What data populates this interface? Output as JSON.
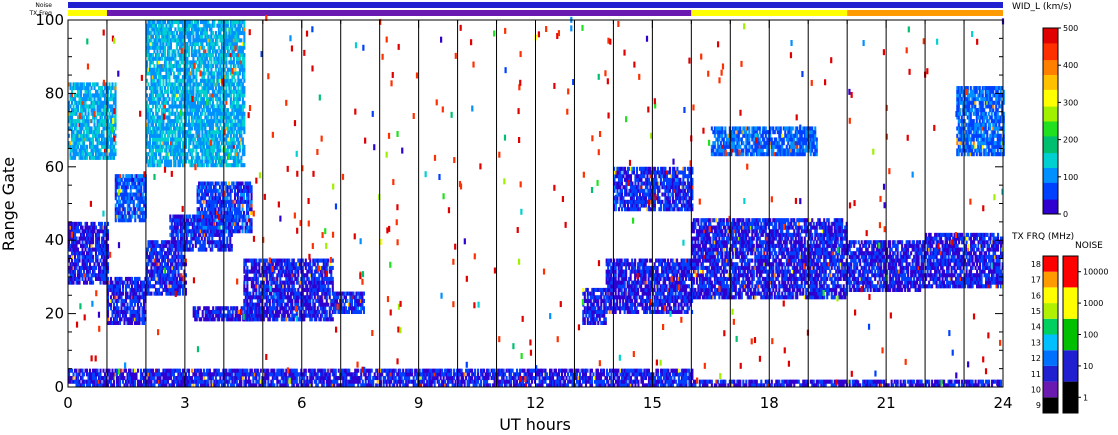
{
  "chart_data": {
    "type": "heatmap",
    "xlabel": "UT hours",
    "ylabel": "Range Gate",
    "xlim": [
      0,
      24
    ],
    "ylim": [
      0,
      100
    ],
    "x_ticks": [
      "0",
      "3",
      "6",
      "9",
      "12",
      "15",
      "18",
      "21",
      "24"
    ],
    "y_ticks": [
      "0",
      "20",
      "40",
      "60",
      "80",
      "100"
    ],
    "scan_boundaries_ut": [
      1.0,
      2.0,
      3.0,
      4.0,
      5.0,
      6.0,
      7.0,
      8.0,
      9.0,
      10.0,
      11.0,
      12.0,
      13.0,
      14.0,
      15.0,
      16.0,
      17.0,
      18.0,
      19.0,
      20.0,
      21.0,
      22.0,
      23.0
    ],
    "echo_regions": [
      {
        "x0": 0.0,
        "x1": 1.0,
        "y0": 28,
        "y1": 45,
        "wid": 40
      },
      {
        "x0": 1.0,
        "x1": 2.0,
        "y0": 17,
        "y1": 30,
        "wid": 40
      },
      {
        "x0": 2.0,
        "x1": 3.0,
        "y0": 25,
        "y1": 40,
        "wid": 45
      },
      {
        "x0": 2.6,
        "x1": 4.2,
        "y0": 37,
        "y1": 47,
        "wid": 50
      },
      {
        "x0": 3.3,
        "x1": 4.7,
        "y0": 42,
        "y1": 56,
        "wid": 60
      },
      {
        "x0": 1.2,
        "x1": 2.0,
        "y0": 45,
        "y1": 58,
        "wid": 70
      },
      {
        "x0": 3.2,
        "x1": 4.7,
        "y0": 18,
        "y1": 22,
        "wid": 40
      },
      {
        "x0": 4.5,
        "x1": 6.8,
        "y0": 18,
        "y1": 35,
        "wid": 40
      },
      {
        "x0": 6.8,
        "x1": 7.6,
        "y0": 20,
        "y1": 26,
        "wid": 50
      },
      {
        "x0": 0.0,
        "x1": 16.0,
        "y0": 0,
        "y1": 5,
        "wid": 40
      },
      {
        "x0": 16.0,
        "x1": 24.0,
        "y0": 0,
        "y1": 2,
        "wid": 30
      },
      {
        "x0": 13.2,
        "x1": 13.8,
        "y0": 17,
        "y1": 27,
        "wid": 40
      },
      {
        "x0": 13.8,
        "x1": 16.0,
        "y0": 20,
        "y1": 35,
        "wid": 40
      },
      {
        "x0": 14.0,
        "x1": 16.0,
        "y0": 48,
        "y1": 60,
        "wid": 50
      },
      {
        "x0": 16.0,
        "x1": 20.0,
        "y0": 24,
        "y1": 46,
        "wid": 40
      },
      {
        "x0": 20.0,
        "x1": 22.0,
        "y0": 26,
        "y1": 40,
        "wid": 40
      },
      {
        "x0": 22.0,
        "x1": 24.0,
        "y0": 27,
        "y1": 42,
        "wid": 40
      },
      {
        "x0": 16.5,
        "x1": 19.2,
        "y0": 63,
        "y1": 71,
        "wid": 80
      },
      {
        "x0": 22.8,
        "x1": 24.0,
        "y0": 63,
        "y1": 82,
        "wid": 80
      },
      {
        "x0": 0.0,
        "x1": 1.2,
        "y0": 62,
        "y1": 83,
        "wid": 120
      },
      {
        "x0": 2.0,
        "x1": 4.5,
        "y0": 60,
        "y1": 100,
        "wid": 120
      }
    ],
    "colorbars": [
      {
        "label": "WID_L (km/s)",
        "ticks": [
          "0",
          "100",
          "200",
          "300",
          "400",
          "500"
        ],
        "range": [
          0,
          500
        ]
      },
      {
        "label": "TX FRQ (MHz)",
        "ticks": [
          "9",
          "10",
          "11",
          "12",
          "13",
          "14",
          "15",
          "16",
          "17",
          "18"
        ]
      },
      {
        "label": "NOISE",
        "ticks": [
          "1",
          "10",
          "100",
          "1000",
          "10000"
        ]
      }
    ],
    "strips": [
      {
        "label": "Noise",
        "segments": [
          {
            "from": 0,
            "to": 24,
            "color": "#2020d0"
          }
        ]
      },
      {
        "label": "TX Freq",
        "segments": [
          {
            "from": 0,
            "to": 1,
            "color": "#ffff00"
          },
          {
            "from": 1,
            "to": 16,
            "color": "#6a1ab0"
          },
          {
            "from": 16,
            "to": 20,
            "color": "#ffff00"
          },
          {
            "from": 20,
            "to": 24,
            "color": "#ff9a00"
          }
        ]
      }
    ]
  },
  "labels": {
    "x_axis": "UT hours",
    "y_axis": "Range Gate",
    "noise_strip": "Noise",
    "txfreq_strip": "TX Freq",
    "wid_colorbar": "WID_L (km/s)",
    "txfrq_colorbar": "TX FRQ (MHz)",
    "noise_colorbar": "NOISE"
  },
  "colors": {
    "wid_scale": [
      "#3000d0",
      "#0040ff",
      "#0090ff",
      "#00d0d0",
      "#00c070",
      "#20e020",
      "#a0f000",
      "#ffff00",
      "#ffc000",
      "#ff8000",
      "#ff3000",
      "#e00000"
    ],
    "txfrq_scale": [
      "#000000",
      "#6a1ab0",
      "#2020d0",
      "#0070ff",
      "#00c0ff",
      "#00d060",
      "#b0f000",
      "#ffff00",
      "#ff9a00",
      "#ff0000"
    ],
    "noise_scale": [
      "#000000",
      "#2020d0",
      "#00c000",
      "#ffff00",
      "#ff0000"
    ]
  }
}
